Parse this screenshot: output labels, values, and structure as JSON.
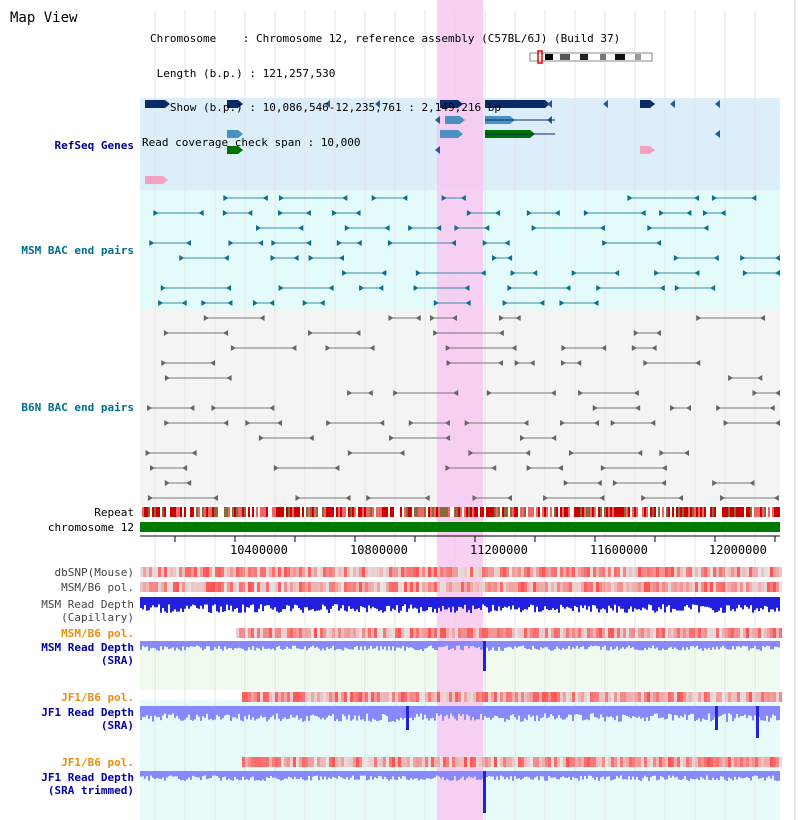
{
  "title": "Map View",
  "info": {
    "chromosome": "Chromosome    : Chromosome 12, reference assembly (C57BL/6J) (Build 37)",
    "length": " Length (b.p.) : 121,257,530",
    "show": "   Show (b.p.) : 10,086,546-12,235,761 : 2,149,216 bp",
    "read_check": "Read coverage check span : 10,000"
  },
  "tracks": {
    "refseq": "RefSeq Genes",
    "msm_bac": "MSM BAC end pairs",
    "b6n_bac": "B6N BAC end pairs",
    "repeat": "Repeat",
    "chromosome": "chromosome 12",
    "dbsnp": "dbSNP(Mouse)",
    "msm_b6_pol": "MSM/B6 pol.",
    "msm_read_depth_cap": "MSM Read Depth\n(Capillary)",
    "msm_b6_pol2": "MSM/B6 pol.",
    "msm_read_depth_sra": "MSM Read Depth\n(SRA)",
    "jf1_b6_pol": "JF1/B6 pol.",
    "jf1_read_depth_sra": "JF1 Read Depth\n(SRA)",
    "jf1_b6_pol2": "JF1/B6 pol.",
    "jf1_read_depth_trim": "JF1 Read Depth\n(SRA trimmed)"
  },
  "ruler": {
    "ticks": [
      "10400000",
      "10800000",
      "11200000",
      "11600000",
      "12000000"
    ]
  },
  "colors": {
    "refseq_bg": "#dceefa",
    "msm_bg": "#e4fbfb",
    "b6n_bg": "#f4f4f4",
    "highlight": "#f8c8f0",
    "msm_label": "#006e8c",
    "b6n_label": "#006e8c",
    "refseq_label": "#00008b",
    "orange_label": "#e8900a",
    "blue_label": "#0000aa",
    "chromosome_green": "#007a00",
    "depth_dark": "#2020dd",
    "depth_light": "#8888ff"
  }
}
